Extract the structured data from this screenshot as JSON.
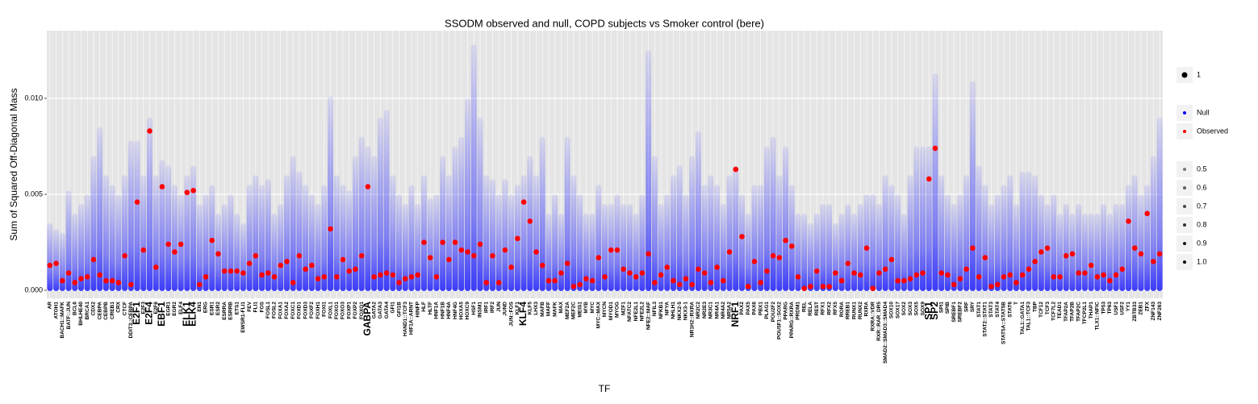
{
  "chart_data": {
    "type": "scatter",
    "title": "SSODM observed and null, COPD subjects vs Smoker control (bere)",
    "x_label": "TF",
    "y_label": "Sum of Squared Off-Diagonal Mass",
    "ylim": [
      -0.00042,
      0.01353
    ],
    "yticks": [
      {
        "value": 0,
        "label": "0.000"
      },
      0.005,
      {
        "value": 0.01,
        "label": "0.010"
      }
    ],
    "grid": true,
    "size_legend": [
      1
    ],
    "alpha_legend": [
      0.5,
      0.6,
      0.7,
      0.8,
      0.9,
      {
        "value": 1,
        "label": "1.0"
      }
    ],
    "categories": [
      "AR",
      "ATOH1",
      "BACH1::MAFK",
      "BATF::JUN",
      "BCL6",
      "BHLHE40",
      "BRCA1",
      "CDX2",
      "CEBPA",
      "CEBPB",
      "CREB1",
      "CRX",
      "CTCF",
      "DDIT3::CEBPA",
      "E2F1",
      "E2F3",
      "E2F4",
      "E2F6",
      "EBF1",
      "EGR1",
      "EGR2",
      "ELF4",
      "ELK1",
      "ELK4",
      "EN1",
      "ERG",
      "ESR1",
      "ESR2",
      "ESRRA",
      "ESRRB",
      "ETS1",
      "EWSR1-FLI1",
      "FEV",
      "FLI1",
      "FOS",
      "FOSL1",
      "FOSL2",
      "FOXA1",
      "FOXA2",
      "FOXC1",
      "FOXD1",
      "FOXD3",
      "FOXF2",
      "FOXH1",
      "FOXI1",
      "FOXL1",
      "FOXO1",
      "FOXO3",
      "FOXP1",
      "FOXP2",
      "FOXQ1",
      "GABPA",
      "GATA2",
      "GATA3",
      "GATA4",
      "GFI1",
      "GFI1B",
      "HAND1::TCF3",
      "HIF1A::ARNT",
      "HINFP",
      "HLF",
      "HLTF",
      "HNF1A",
      "HNF1B",
      "HNF4A",
      "HNF4G",
      "HOXA5",
      "HOXC9",
      "HSF1",
      "INSM1",
      "IRF1",
      "IRF2",
      "JUN",
      "JUND",
      "JUN::FOS",
      "KLF1",
      "KLF4",
      "KLF5",
      "LHX3",
      "MAFB",
      "MAFF",
      "MAFK",
      "MAX",
      "MEF2A",
      "MEF2C",
      "MEIS1",
      "MYB",
      "MYC",
      "MYC::MAX",
      "MYCN",
      "MYOD1",
      "MYOG",
      "MZF1",
      "NFATC2",
      "NFE2L1",
      "NFE2L2",
      "NFE2::MAF",
      "NFIL3",
      "NFKB1",
      "NFYA",
      "NHLH1",
      "NKX2-5",
      "NKX3-1",
      "NR1H2::RXRA",
      "NR2C2",
      "NR2E3",
      "NR3C1",
      "NR4A1",
      "NR4A2",
      "NR5A2",
      "NRF1",
      "PAX2",
      "PAX5",
      "PAX6",
      "PBX1",
      "PLAG1",
      "POU2F2",
      "POU5F1::SOX2",
      "PPARG",
      "PPARG::RXRA",
      "PRDM1",
      "REL",
      "RELA",
      "REST",
      "RFX1",
      "RFX2",
      "RFX5",
      "RORA",
      "RREB1",
      "RUNX1",
      "RUNX2",
      "RXRA",
      "RXRA::VDR",
      "RXR::RAR_DR5",
      "SMAD2::SMAD3::SMAD4",
      "SOX10",
      "SOX17",
      "SOX2",
      "SOX3",
      "SOX5",
      "SOX9",
      "SP1",
      "SP2",
      "SPI1",
      "SPIB",
      "SREBF1",
      "SREBF2",
      "SRF",
      "SRY",
      "STAT1",
      "STAT2::STAT1",
      "STAT3",
      "STAT4",
      "STAT5A::STAT5B",
      "STAT6",
      "T",
      "TAL1::GATA1",
      "TAL1::TCF3",
      "TBP",
      "TCF12",
      "TCF3",
      "TCF7L2",
      "TEAD1",
      "TFAP2A",
      "TFAP2B",
      "TFAP2C",
      "TFCP2L1",
      "THAP1",
      "TLX1::NFIC",
      "TP53",
      "TP63",
      "USF1",
      "USF2",
      "YY1",
      "ZBTB33",
      "ZEB1",
      "ZFX",
      "ZNF143",
      "ZNF263"
    ],
    "series": [
      {
        "name": "Null",
        "color": "#0000ff",
        "values": [
          0.0035,
          0.0032,
          0.003,
          0.0052,
          0.004,
          0.0045,
          0.005,
          0.007,
          0.0085,
          0.006,
          0.0055,
          0.005,
          0.006,
          0.0078,
          0.0078,
          0.006,
          0.009,
          0.006,
          0.0068,
          0.0065,
          0.0055,
          0.005,
          0.006,
          0.0065,
          0.0045,
          0.005,
          0.0055,
          0.004,
          0.0045,
          0.005,
          0.004,
          0.0035,
          0.0055,
          0.006,
          0.0055,
          0.0058,
          0.004,
          0.0045,
          0.006,
          0.007,
          0.0062,
          0.0055,
          0.005,
          0.0045,
          0.0055,
          0.0101,
          0.006,
          0.0055,
          0.0052,
          0.007,
          0.008,
          0.0075,
          0.007,
          0.009,
          0.0094,
          0.006,
          0.005,
          0.0045,
          0.0055,
          0.0045,
          0.006,
          0.0048,
          0.005,
          0.007,
          0.006,
          0.0075,
          0.008,
          0.01,
          0.0128,
          0.009,
          0.006,
          0.0058,
          0.005,
          0.0058,
          0.005,
          0.0055,
          0.006,
          0.007,
          0.006,
          0.008,
          0.004,
          0.005,
          0.004,
          0.008,
          0.006,
          0.005,
          0.004,
          0.004,
          0.0055,
          0.0045,
          0.0045,
          0.005,
          0.0045,
          0.0045,
          0.004,
          0.005,
          0.0125,
          0.007,
          0.0045,
          0.005,
          0.006,
          0.0065,
          0.005,
          0.007,
          0.0083,
          0.0055,
          0.006,
          0.0055,
          0.0045,
          0.006,
          0.0065,
          0.005,
          0.004,
          0.0055,
          0.0055,
          0.0075,
          0.008,
          0.006,
          0.0075,
          0.0055,
          0.004,
          0.004,
          0.0035,
          0.004,
          0.0045,
          0.0045,
          0.0035,
          0.004,
          0.0045,
          0.004,
          0.0045,
          0.005,
          0.005,
          0.0045,
          0.006,
          0.0055,
          0.005,
          0.004,
          0.006,
          0.0075,
          0.0075,
          0.0075,
          0.0113,
          0.006,
          0.005,
          0.0045,
          0.005,
          0.006,
          0.0109,
          0.0065,
          0.0055,
          0.0045,
          0.005,
          0.0055,
          0.006,
          0.0045,
          0.0062,
          0.0062,
          0.006,
          0.005,
          0.0045,
          0.005,
          0.004,
          0.0045,
          0.004,
          0.0045,
          0.004,
          0.004,
          0.004,
          0.0045,
          0.004,
          0.0045,
          0.0045,
          0.0055,
          0.006,
          0.005,
          0.0055,
          0.007,
          0.009
        ]
      },
      {
        "name": "Observed",
        "color": "#ff0000",
        "values": [
          0.0013,
          0.0014,
          0.0005,
          0.0009,
          0.0004,
          0.0006,
          0.0007,
          0.0016,
          0.0008,
          0.0005,
          0.0005,
          0.0004,
          0.0018,
          0.0003,
          0.0046,
          0.0021,
          0.0083,
          0.0012,
          0.0054,
          0.0024,
          0.002,
          0.0024,
          0.0051,
          0.0052,
          0.0003,
          0.0007,
          0.0026,
          0.0019,
          0.001,
          0.001,
          0.001,
          0.0009,
          0.0014,
          0.0018,
          0.0008,
          0.0009,
          0.0007,
          0.0013,
          0.0015,
          0.0004,
          0.0018,
          0.0011,
          0.0013,
          0.0006,
          0.0007,
          0.0032,
          0.0007,
          0.0016,
          0.001,
          0.0011,
          0.0018,
          0.0054,
          0.0007,
          0.0008,
          0.0009,
          0.0008,
          0.0004,
          0.0006,
          0.0007,
          0.0008,
          0.0025,
          0.0017,
          0.0007,
          0.0025,
          0.0016,
          0.0025,
          0.0021,
          0.002,
          0.0018,
          0.0024,
          0.0004,
          0.0018,
          0.0004,
          0.0021,
          0.0012,
          0.0027,
          0.0046,
          0.0036,
          0.002,
          0.0013,
          0.0005,
          0.0005,
          0.0009,
          0.0014,
          0.0002,
          0.0003,
          0.0006,
          0.0005,
          0.0017,
          0.0007,
          0.0021,
          0.0021,
          0.0011,
          0.0009,
          0.0007,
          0.0009,
          0.0019,
          0.0004,
          0.0008,
          0.0012,
          0.0005,
          0.0003,
          0.0006,
          0.0003,
          0.0011,
          0.0009,
          0.0004,
          0.0012,
          0.0005,
          0.002,
          0.0063,
          0.0028,
          0.0002,
          0.0015,
          0.0004,
          0.001,
          0.0018,
          0.0017,
          0.0026,
          0.0023,
          0.0007,
          0.0001,
          0.0002,
          0.001,
          0.0002,
          0.0002,
          0.0009,
          0.0005,
          0.0014,
          0.0009,
          0.0008,
          0.0022,
          0.0001,
          0.0009,
          0.0011,
          0.0016,
          0.0005,
          0.0005,
          0.0006,
          0.0008,
          0.0009,
          0.0058,
          0.0074,
          0.0009,
          0.0008,
          0.0003,
          0.0006,
          0.0011,
          0.0022,
          0.0007,
          0.0017,
          0.0002,
          0.0003,
          0.0007,
          0.0008,
          0.0004,
          0.0008,
          0.0011,
          0.0015,
          0.002,
          0.0022,
          0.0007,
          0.0007,
          0.0018,
          0.0019,
          0.0009,
          0.0009,
          0.0013,
          0.0007,
          0.0008,
          0.0005,
          0.0008,
          0.0011,
          0.0036,
          0.0022,
          0.0019,
          0.004,
          0.0015,
          0.0019
        ]
      }
    ]
  }
}
